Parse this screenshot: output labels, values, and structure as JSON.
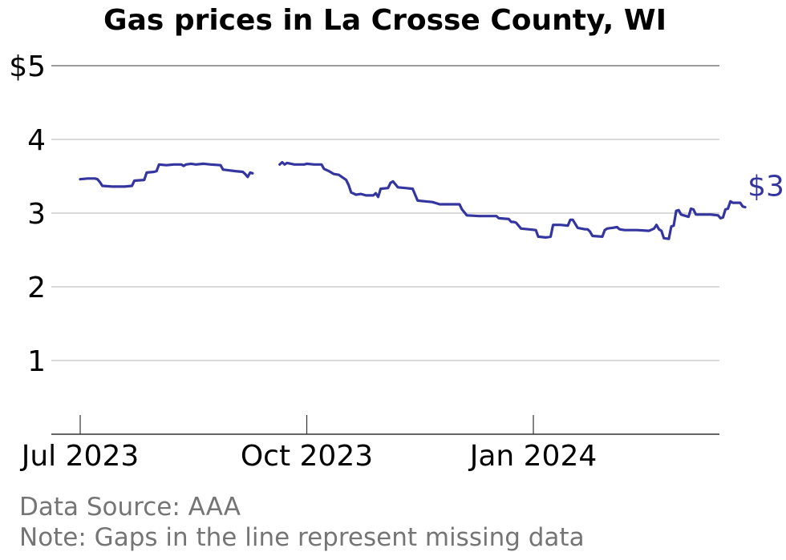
{
  "chart_data": {
    "type": "line",
    "title": "Gas prices in La Crosse County, WI",
    "xlabel": "",
    "ylabel": "",
    "ylim": [
      0,
      5
    ],
    "y_ticks": [
      {
        "value": 5,
        "label": "$5"
      },
      {
        "value": 4,
        "label": "4"
      },
      {
        "value": 3,
        "label": "3"
      },
      {
        "value": 2,
        "label": "2"
      },
      {
        "value": 1,
        "label": "1"
      }
    ],
    "x_range": [
      "2023-06-20",
      "2024-03-25"
    ],
    "x_ticks": [
      {
        "date": "2023-07-01",
        "label": "Jul 2023"
      },
      {
        "date": "2023-10-01",
        "label": "Oct 2023"
      },
      {
        "date": "2024-01-01",
        "label": "Jan 2024"
      }
    ],
    "grid": true,
    "line_color": "#3535a0",
    "last_value_label": "$3.08",
    "series": [
      {
        "segments": [
          [
            [
              "2023-07-01",
              3.46
            ],
            [
              "2023-07-04",
              3.47
            ],
            [
              "2023-07-07",
              3.47
            ],
            [
              "2023-07-08",
              3.46
            ],
            [
              "2023-07-09",
              3.42
            ],
            [
              "2023-07-10",
              3.37
            ],
            [
              "2023-07-14",
              3.36
            ],
            [
              "2023-07-19",
              3.36
            ],
            [
              "2023-07-22",
              3.37
            ],
            [
              "2023-07-23",
              3.44
            ],
            [
              "2023-07-27",
              3.45
            ],
            [
              "2023-07-28",
              3.55
            ],
            [
              "2023-07-31",
              3.56
            ],
            [
              "2023-08-01",
              3.57
            ],
            [
              "2023-08-02",
              3.66
            ],
            [
              "2023-08-05",
              3.65
            ],
            [
              "2023-08-08",
              3.66
            ],
            [
              "2023-08-11",
              3.66
            ],
            [
              "2023-08-12",
              3.64
            ],
            [
              "2023-08-13",
              3.66
            ],
            [
              "2023-08-15",
              3.67
            ],
            [
              "2023-08-17",
              3.66
            ],
            [
              "2023-08-20",
              3.67
            ],
            [
              "2023-08-23",
              3.66
            ],
            [
              "2023-08-27",
              3.65
            ],
            [
              "2023-08-28",
              3.59
            ],
            [
              "2023-09-02",
              3.57
            ],
            [
              "2023-09-05",
              3.56
            ],
            [
              "2023-09-06",
              3.53
            ],
            [
              "2023-09-07",
              3.49
            ],
            [
              "2023-09-08",
              3.55
            ],
            [
              "2023-09-09",
              3.54
            ]
          ],
          [
            [
              "2023-09-20",
              3.66
            ],
            [
              "2023-09-21",
              3.69
            ],
            [
              "2023-09-22",
              3.66
            ],
            [
              "2023-09-23",
              3.68
            ],
            [
              "2023-09-26",
              3.66
            ],
            [
              "2023-09-30",
              3.66
            ],
            [
              "2023-10-01",
              3.67
            ],
            [
              "2023-10-04",
              3.66
            ],
            [
              "2023-10-07",
              3.66
            ],
            [
              "2023-10-08",
              3.6
            ],
            [
              "2023-10-10",
              3.57
            ],
            [
              "2023-10-12",
              3.53
            ],
            [
              "2023-10-14",
              3.52
            ],
            [
              "2023-10-17",
              3.45
            ],
            [
              "2023-10-18",
              3.38
            ],
            [
              "2023-10-19",
              3.28
            ],
            [
              "2023-10-21",
              3.25
            ],
            [
              "2023-10-23",
              3.26
            ],
            [
              "2023-10-25",
              3.24
            ],
            [
              "2023-10-28",
              3.24
            ],
            [
              "2023-10-29",
              3.27
            ],
            [
              "2023-10-30",
              3.22
            ],
            [
              "2023-10-31",
              3.33
            ],
            [
              "2023-11-03",
              3.34
            ],
            [
              "2023-11-04",
              3.41
            ],
            [
              "2023-11-05",
              3.43
            ],
            [
              "2023-11-07",
              3.35
            ],
            [
              "2023-11-10",
              3.34
            ],
            [
              "2023-11-13",
              3.33
            ],
            [
              "2023-11-14",
              3.25
            ],
            [
              "2023-11-15",
              3.17
            ],
            [
              "2023-11-18",
              3.16
            ],
            [
              "2023-11-21",
              3.15
            ],
            [
              "2023-11-24",
              3.12
            ],
            [
              "2023-12-02",
              3.12
            ],
            [
              "2023-12-03",
              3.05
            ],
            [
              "2023-12-05",
              2.97
            ],
            [
              "2023-12-10",
              2.96
            ],
            [
              "2023-12-12",
              2.96
            ],
            [
              "2023-12-17",
              2.96
            ],
            [
              "2023-12-18",
              2.93
            ],
            [
              "2023-12-22",
              2.92
            ],
            [
              "2023-12-23",
              2.88
            ],
            [
              "2023-12-24",
              2.88
            ],
            [
              "2023-12-25",
              2.87
            ],
            [
              "2023-12-27",
              2.79
            ],
            [
              "2023-12-30",
              2.78
            ],
            [
              "2024-01-02",
              2.77
            ],
            [
              "2024-01-03",
              2.68
            ],
            [
              "2024-01-06",
              2.67
            ],
            [
              "2024-01-08",
              2.68
            ],
            [
              "2024-01-09",
              2.84
            ],
            [
              "2024-01-12",
              2.84
            ],
            [
              "2024-01-15",
              2.83
            ],
            [
              "2024-01-16",
              2.91
            ],
            [
              "2024-01-17",
              2.91
            ],
            [
              "2024-01-19",
              2.8
            ],
            [
              "2024-01-22",
              2.78
            ],
            [
              "2024-01-23",
              2.78
            ],
            [
              "2024-01-24",
              2.75
            ],
            [
              "2024-01-25",
              2.69
            ],
            [
              "2024-01-29",
              2.68
            ],
            [
              "2024-01-30",
              2.77
            ],
            [
              "2024-01-31",
              2.79
            ],
            [
              "2024-02-02",
              2.8
            ],
            [
              "2024-02-04",
              2.81
            ],
            [
              "2024-02-05",
              2.78
            ],
            [
              "2024-02-07",
              2.77
            ],
            [
              "2024-02-12",
              2.77
            ],
            [
              "2024-02-17",
              2.76
            ],
            [
              "2024-02-19",
              2.79
            ],
            [
              "2024-02-20",
              2.84
            ],
            [
              "2024-02-21",
              2.78
            ],
            [
              "2024-02-22",
              2.76
            ],
            [
              "2024-02-23",
              2.66
            ],
            [
              "2024-02-25",
              2.65
            ],
            [
              "2024-02-26",
              2.82
            ],
            [
              "2024-02-27",
              2.83
            ],
            [
              "2024-02-28",
              3.03
            ],
            [
              "2024-02-29",
              3.04
            ],
            [
              "2024-03-01",
              2.98
            ],
            [
              "2024-03-03",
              2.96
            ],
            [
              "2024-03-04",
              2.95
            ],
            [
              "2024-03-05",
              3.06
            ],
            [
              "2024-03-06",
              3.05
            ],
            [
              "2024-03-07",
              2.98
            ],
            [
              "2024-03-10",
              2.98
            ],
            [
              "2024-03-13",
              2.98
            ],
            [
              "2024-03-16",
              2.97
            ],
            [
              "2024-03-17",
              2.93
            ],
            [
              "2024-03-18",
              2.94
            ],
            [
              "2024-03-19",
              3.05
            ],
            [
              "2024-03-20",
              3.06
            ],
            [
              "2024-03-21",
              3.16
            ],
            [
              "2024-03-22",
              3.14
            ],
            [
              "2024-03-25",
              3.14
            ],
            [
              "2024-03-26",
              3.09
            ],
            [
              "2024-03-27",
              3.08
            ]
          ]
        ]
      }
    ]
  },
  "footer": {
    "source": "Data Source: AAA",
    "note": "Note: Gaps in the line represent missing data"
  }
}
